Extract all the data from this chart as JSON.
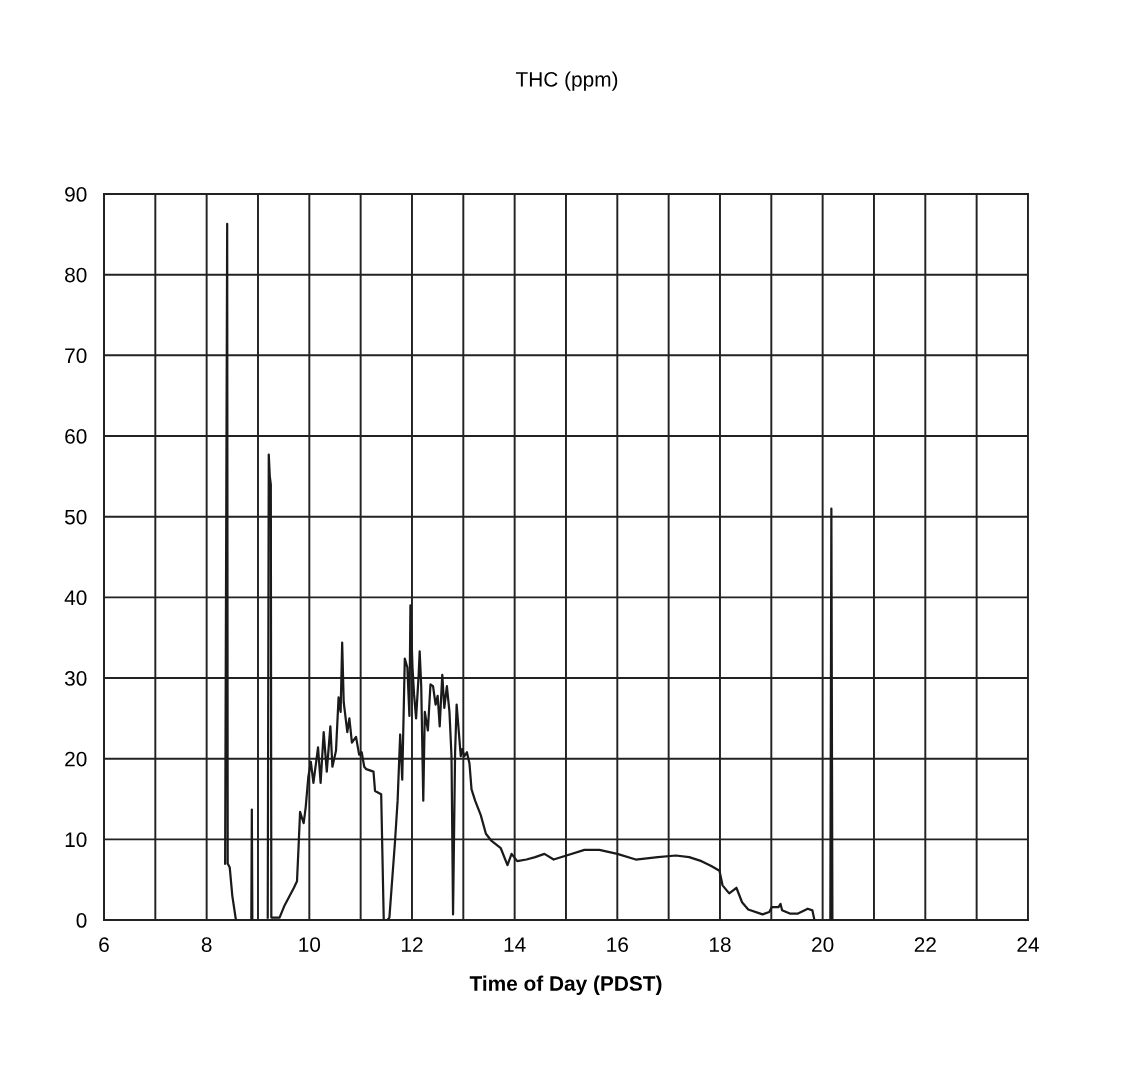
{
  "chart_data": {
    "type": "line",
    "title": "THC (ppm)",
    "xlabel": "Time of Day (PDST)",
    "xlim": [
      6,
      24
    ],
    "ylim": [
      0,
      90
    ],
    "xticks": [
      6,
      {
        "value": 7,
        "label": null
      },
      8,
      {
        "value": 9,
        "label": null
      },
      10,
      {
        "value": 11,
        "label": null
      },
      12,
      {
        "value": 13,
        "label": null
      },
      14,
      {
        "value": 15,
        "label": null
      },
      16,
      {
        "value": 17,
        "label": null
      },
      18,
      {
        "value": 19,
        "label": null
      },
      20,
      {
        "value": 21,
        "label": null
      },
      22,
      {
        "value": 23,
        "label": null
      },
      24
    ],
    "yticks": [
      0,
      10,
      20,
      30,
      40,
      50,
      60,
      70,
      80,
      90
    ],
    "grid": true,
    "marker": "none",
    "line_style": "solid",
    "series": [
      {
        "color": "#1a1a1a",
        "x": [
          8.36,
          8.4,
          8.41,
          8.45,
          8.5,
          8.57,
          8.6,
          8.87,
          8.88,
          8.89,
          8.95,
          9.19,
          9.21,
          9.23,
          9.25,
          9.26,
          9.27,
          9.42,
          9.51,
          9.7,
          9.76,
          9.79,
          9.82,
          9.89,
          9.93,
          9.98,
          10.03,
          10.08,
          10.17,
          10.22,
          10.28,
          10.34,
          10.41,
          10.45,
          10.52,
          10.57,
          10.61,
          10.64,
          10.67,
          10.74,
          10.78,
          10.83,
          10.91,
          10.97,
          11.02,
          11.07,
          11.11,
          11.25,
          11.28,
          11.4,
          11.45,
          11.52,
          11.56,
          11.67,
          11.72,
          11.77,
          11.81,
          11.86,
          11.91,
          11.95,
          11.97,
          12.01,
          12.04,
          12.08,
          12.13,
          12.15,
          12.18,
          12.22,
          12.25,
          12.31,
          12.36,
          12.41,
          12.46,
          12.5,
          12.54,
          12.59,
          12.63,
          12.68,
          12.73,
          12.77,
          12.8,
          12.84,
          12.87,
          12.91,
          12.95,
          12.98,
          13.02,
          13.07,
          13.12,
          13.16,
          13.23,
          13.34,
          13.44,
          13.55,
          13.73,
          13.86,
          13.94,
          14.05,
          14.23,
          14.4,
          14.58,
          14.76,
          15.01,
          15.36,
          15.65,
          16.0,
          16.36,
          16.79,
          17.14,
          17.4,
          17.64,
          17.83,
          17.99,
          18.05,
          18.18,
          18.32,
          18.43,
          18.55,
          18.83,
          18.96,
          19.01,
          19.14,
          19.18,
          19.21,
          19.36,
          19.52,
          19.71,
          19.8,
          19.84,
          20.0,
          20.15,
          20.17,
          20.19
        ],
        "values": [
          7.0,
          86.3,
          7.0,
          6.5,
          3.0,
          0,
          null,
          0,
          13.7,
          0,
          null,
          0.3,
          57.7,
          55.0,
          54.0,
          0.3,
          0.3,
          0.3,
          1.7,
          4.0,
          4.8,
          9.0,
          13.4,
          12.0,
          14.0,
          17.7,
          19.6,
          17.0,
          21.4,
          17.0,
          23.3,
          18.4,
          24.0,
          19.0,
          21.0,
          27.6,
          25.8,
          34.4,
          27.0,
          23.3,
          25.0,
          22.0,
          22.7,
          20.5,
          20.8,
          19.0,
          18.7,
          18.4,
          16.0,
          15.6,
          0,
          0,
          0.3,
          9.8,
          14.8,
          23.0,
          17.4,
          32.4,
          31.3,
          25.3,
          39.0,
          31.3,
          28.0,
          25.0,
          30.4,
          33.3,
          29.0,
          14.8,
          25.8,
          23.5,
          29.2,
          29.0,
          26.7,
          27.8,
          24.0,
          30.4,
          26.3,
          29.0,
          25.8,
          20.3,
          0.7,
          20.8,
          26.7,
          23.5,
          20.3,
          21.2,
          20.3,
          20.8,
          19.4,
          16.2,
          14.8,
          13.0,
          10.7,
          9.8,
          8.9,
          6.8,
          8.2,
          7.3,
          7.5,
          7.8,
          8.2,
          7.5,
          8.0,
          8.7,
          8.7,
          8.2,
          7.5,
          7.8,
          8.0,
          7.8,
          7.3,
          6.7,
          6.1,
          4.3,
          3.3,
          4.0,
          2.2,
          1.3,
          0.7,
          1.0,
          1.6,
          1.6,
          2.0,
          1.2,
          0.8,
          0.8,
          1.4,
          1.2,
          0,
          null,
          0,
          51.0,
          0
        ]
      }
    ]
  }
}
